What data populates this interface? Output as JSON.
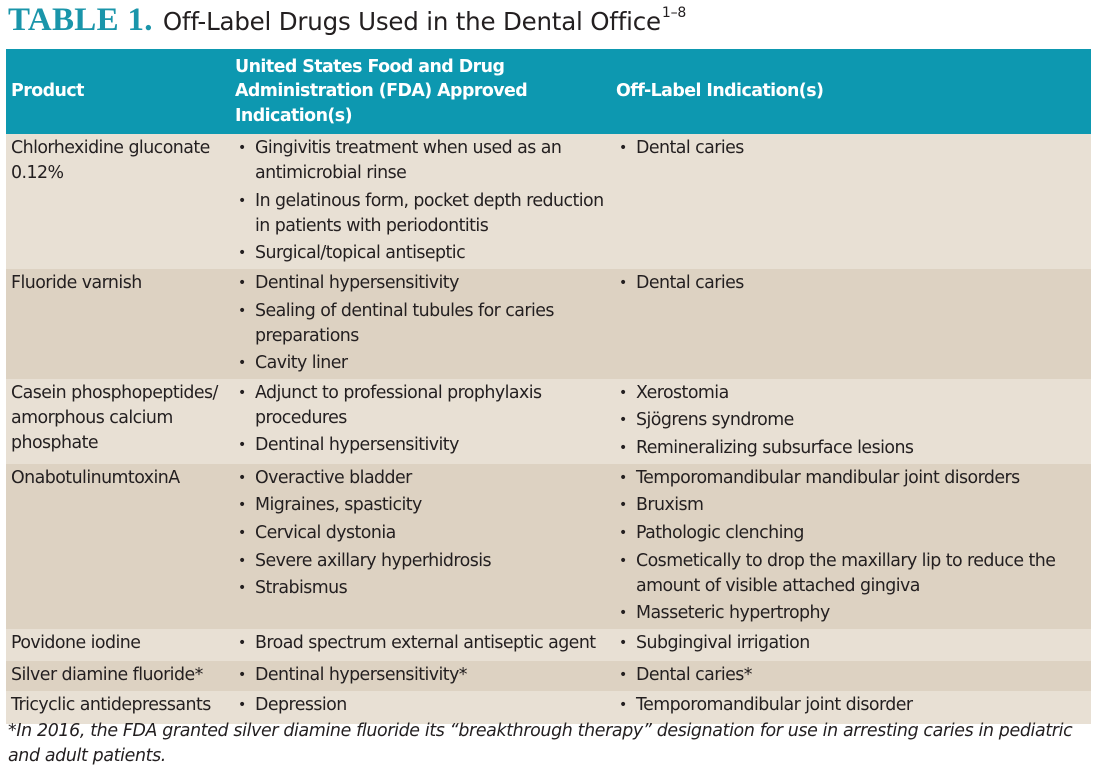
{
  "title": {
    "label": "TABLE 1.",
    "text": "Off-Label Drugs Used in the Dental Office",
    "superscript": "1–8"
  },
  "colors": {
    "accent": "#1a95aa",
    "header_bg": "#0d98b0",
    "row_light": "#e8e0d4",
    "row_dark": "#ddd2c2"
  },
  "table": {
    "headers": {
      "product": "Product",
      "fda": "United States Food and Drug Administration (FDA) Approved Indication(s)",
      "offlabel": "Off-Label Indication(s)"
    },
    "rows": [
      {
        "product": "Chlorhexidine gluconate 0.12%",
        "fda": [
          "Gingivitis treatment when used as an antimicrobial rinse",
          "In gelatinous form, pocket depth reduction in patients with periodontitis",
          "Surgical/topical antiseptic"
        ],
        "offlabel": [
          "Dental caries"
        ]
      },
      {
        "product": "Fluoride varnish",
        "fda": [
          "Dentinal hypersensitivity",
          "Sealing of dentinal tubules for caries preparations",
          "Cavity liner"
        ],
        "offlabel": [
          "Dental caries"
        ]
      },
      {
        "product": "Casein phosphopeptides/ amorphous calcium phosphate",
        "fda": [
          "Adjunct to professional prophylaxis procedures",
          "Dentinal hypersensitivity"
        ],
        "offlabel": [
          "Xerostomia",
          "Sjögrens syndrome",
          "Remineralizing subsurface lesions"
        ]
      },
      {
        "product": "OnabotulinumtoxinA",
        "fda": [
          "Overactive bladder",
          "Migraines, spasticity",
          "Cervical dystonia",
          "Severe axillary hyperhidrosis",
          "Strabismus"
        ],
        "offlabel": [
          "Temporomandibular mandibular joint disorders",
          "Bruxism",
          "Pathologic clenching",
          "Cosmetically to drop the maxillary lip to reduce the amount of visible attached gingiva",
          "Masseteric hypertrophy"
        ]
      },
      {
        "product": "Povidone iodine",
        "fda": [
          "Broad spectrum external antiseptic agent"
        ],
        "offlabel": [
          "Subgingival irrigation"
        ]
      },
      {
        "product": "Silver diamine fluoride*",
        "fda": [
          "Dentinal hypersensitivity*"
        ],
        "offlabel": [
          "Dental caries*"
        ]
      },
      {
        "product": "Tricyclic antidepressants",
        "fda": [
          "Depression"
        ],
        "offlabel": [
          "Temporomandibular joint disorder"
        ]
      }
    ]
  },
  "footnote": "*In 2016, the FDA granted silver diamine fluoride its “breakthrough therapy” designation for use in arresting caries in pediatric and adult patients."
}
